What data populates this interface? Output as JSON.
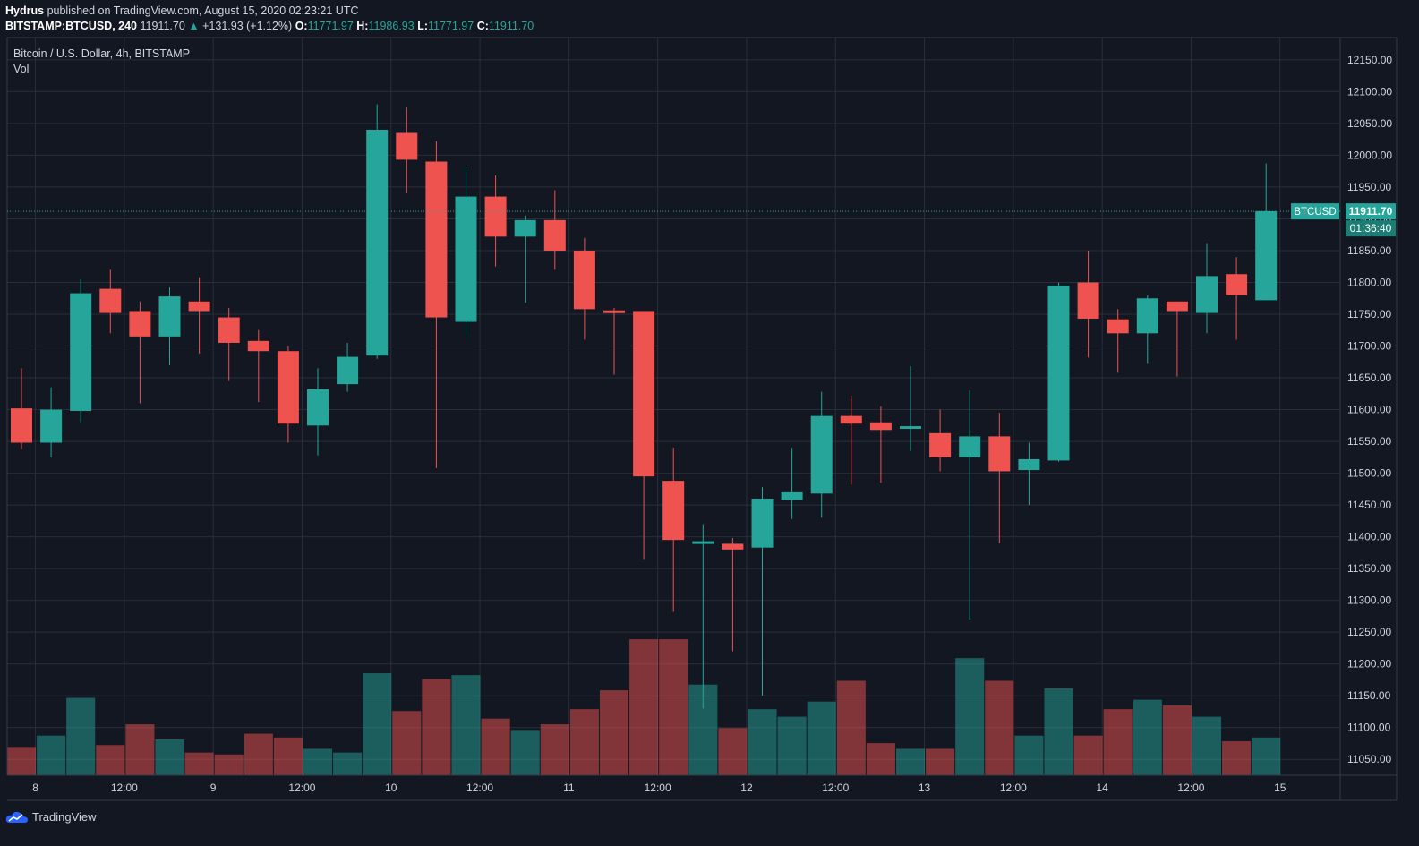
{
  "header": {
    "author": "Hydrus",
    "published_text": "published on TradingView.com, August 15, 2020 02:23:21 UTC",
    "symbol_line": "BITSTAMP:BTCUSD, 240",
    "last": "11911.70",
    "change": "+131.93 (+1.12%)",
    "open_label": "O:",
    "open": "11771.97",
    "high_label": "H:",
    "high": "11986.93",
    "low_label": "L:",
    "low": "11771.97",
    "close_label": "C:",
    "close": "11911.70"
  },
  "legend": {
    "title": "Bitcoin / U.S. Dollar, 4h, BITSTAMP",
    "volume_label": "Vol"
  },
  "price_tag": {
    "symbol": "BTCUSD",
    "price": "11911.70",
    "countdown": "01:36:40"
  },
  "footer": {
    "brand": "TradingView"
  },
  "colors": {
    "up": "#26a69a",
    "down": "#ef5350",
    "bg": "#131722",
    "grid": "#2a2e39",
    "text": "#d1d4dc"
  },
  "chart_data": {
    "type": "candlestick",
    "ylim": [
      11025,
      12185
    ],
    "y_ticks": [
      11050,
      11100,
      11150,
      11200,
      11250,
      11300,
      11350,
      11400,
      11450,
      11500,
      11550,
      11600,
      11650,
      11700,
      11750,
      11800,
      11850,
      11900,
      11950,
      12000,
      12050,
      12100,
      12150
    ],
    "y_tick_labels": [
      "11050.00",
      "11100.00",
      "11150.00",
      "11200.00",
      "11250.00",
      "11300.00",
      "11350.00",
      "11400.00",
      "11450.00",
      "11500.00",
      "11550.00",
      "11600.00",
      "11650.00",
      "11700.00",
      "11750.00",
      "11800.00",
      "11850.00",
      "11900.00",
      "11950.00",
      "12000.00",
      "12050.00",
      "12100.00",
      "12150.00"
    ],
    "x_ticks": [
      {
        "index": 0.5,
        "label": "8"
      },
      {
        "index": 3.5,
        "label": "12:00"
      },
      {
        "index": 6.5,
        "label": "9"
      },
      {
        "index": 9.5,
        "label": "12:00"
      },
      {
        "index": 12.5,
        "label": "10"
      },
      {
        "index": 15.5,
        "label": "12:00"
      },
      {
        "index": 18.5,
        "label": "11"
      },
      {
        "index": 21.5,
        "label": "12:00"
      },
      {
        "index": 24.5,
        "label": "12"
      },
      {
        "index": 27.5,
        "label": "12:00"
      },
      {
        "index": 30.5,
        "label": "13"
      },
      {
        "index": 33.5,
        "label": "12:00"
      },
      {
        "index": 36.5,
        "label": "14"
      },
      {
        "index": 39.5,
        "label": "12:00"
      },
      {
        "index": 42.5,
        "label": "15"
      }
    ],
    "candles": [
      {
        "o": 11602,
        "h": 11665,
        "l": 11538,
        "c": 11548
      },
      {
        "o": 11548,
        "h": 11635,
        "l": 11525,
        "c": 11600
      },
      {
        "o": 11598,
        "h": 11805,
        "l": 11580,
        "c": 11783
      },
      {
        "o": 11790,
        "h": 11820,
        "l": 11720,
        "c": 11752
      },
      {
        "o": 11755,
        "h": 11770,
        "l": 11610,
        "c": 11715
      },
      {
        "o": 11715,
        "h": 11792,
        "l": 11670,
        "c": 11778
      },
      {
        "o": 11770,
        "h": 11808,
        "l": 11688,
        "c": 11755
      },
      {
        "o": 11745,
        "h": 11760,
        "l": 11645,
        "c": 11705
      },
      {
        "o": 11708,
        "h": 11725,
        "l": 11612,
        "c": 11692
      },
      {
        "o": 11692,
        "h": 11700,
        "l": 11548,
        "c": 11578
      },
      {
        "o": 11575,
        "h": 11665,
        "l": 11528,
        "c": 11632
      },
      {
        "o": 11640,
        "h": 11705,
        "l": 11628,
        "c": 11683
      },
      {
        "o": 11685,
        "h": 12080,
        "l": 11680,
        "c": 12040
      },
      {
        "o": 12035,
        "h": 12075,
        "l": 11940,
        "c": 11993
      },
      {
        "o": 11990,
        "h": 12022,
        "l": 11508,
        "c": 11745
      },
      {
        "o": 11738,
        "h": 11982,
        "l": 11715,
        "c": 11935
      },
      {
        "o": 11935,
        "h": 11968,
        "l": 11825,
        "c": 11872
      },
      {
        "o": 11872,
        "h": 11905,
        "l": 11768,
        "c": 11898
      },
      {
        "o": 11898,
        "h": 11945,
        "l": 11820,
        "c": 11850
      },
      {
        "o": 11850,
        "h": 11870,
        "l": 11710,
        "c": 11758
      },
      {
        "o": 11756,
        "h": 11760,
        "l": 11655,
        "c": 11752
      },
      {
        "o": 11755,
        "h": 11755,
        "l": 11365,
        "c": 11495
      },
      {
        "o": 11488,
        "h": 11540,
        "l": 11282,
        "c": 11395
      },
      {
        "o": 11390,
        "h": 11420,
        "l": 11130,
        "c": 11393
      },
      {
        "o": 11389,
        "h": 11398,
        "l": 11220,
        "c": 11380
      },
      {
        "o": 11383,
        "h": 11478,
        "l": 11150,
        "c": 11460
      },
      {
        "o": 11458,
        "h": 11540,
        "l": 11428,
        "c": 11470
      },
      {
        "o": 11468,
        "h": 11628,
        "l": 11430,
        "c": 11590
      },
      {
        "o": 11590,
        "h": 11622,
        "l": 11482,
        "c": 11578
      },
      {
        "o": 11580,
        "h": 11605,
        "l": 11485,
        "c": 11568
      },
      {
        "o": 11570,
        "h": 11668,
        "l": 11535,
        "c": 11574
      },
      {
        "o": 11563,
        "h": 11600,
        "l": 11503,
        "c": 11525
      },
      {
        "o": 11525,
        "h": 11630,
        "l": 11270,
        "c": 11558
      },
      {
        "o": 11558,
        "h": 11595,
        "l": 11390,
        "c": 11503
      },
      {
        "o": 11505,
        "h": 11548,
        "l": 11450,
        "c": 11522
      },
      {
        "o": 11520,
        "h": 11800,
        "l": 11518,
        "c": 11795
      },
      {
        "o": 11800,
        "h": 11850,
        "l": 11682,
        "c": 11743
      },
      {
        "o": 11742,
        "h": 11758,
        "l": 11658,
        "c": 11720
      },
      {
        "o": 11720,
        "h": 11780,
        "l": 11672,
        "c": 11775
      },
      {
        "o": 11770,
        "h": 11770,
        "l": 11652,
        "c": 11755
      },
      {
        "o": 11752,
        "h": 11862,
        "l": 11720,
        "c": 11810
      },
      {
        "o": 11813,
        "h": 11840,
        "l": 11710,
        "c": 11780
      },
      {
        "o": 11772,
        "h": 11987,
        "l": 11772,
        "c": 11912
      }
    ],
    "volume_ylim": [
      0,
      100
    ],
    "volumes": [
      15,
      21,
      41,
      16,
      27,
      19,
      12,
      11,
      22,
      20,
      14,
      12,
      54,
      34,
      51,
      53,
      30,
      24,
      27,
      35,
      45,
      72,
      72,
      48,
      25,
      35,
      31,
      39,
      50,
      17,
      14,
      14,
      62,
      50,
      21,
      46,
      21,
      35,
      40,
      37,
      31,
      18,
      20
    ],
    "last_price": 11911.7
  }
}
